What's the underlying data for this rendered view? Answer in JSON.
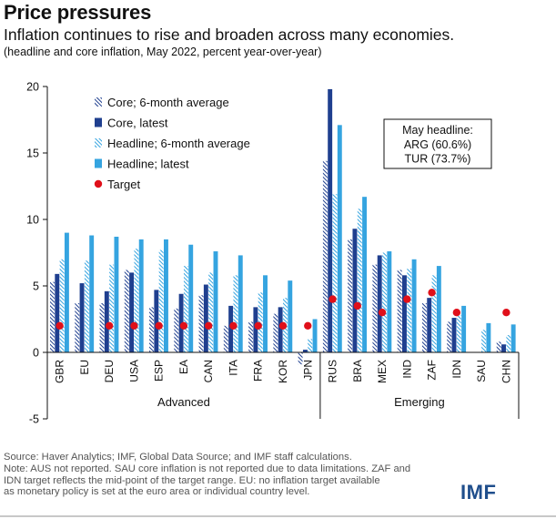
{
  "header": {
    "title": "Price pressures",
    "subtitle": "Inflation continues to rise and broaden across many economies.",
    "note": "(headline and core inflation, May 2022, percent year-over-year)"
  },
  "chart_data": {
    "type": "bar",
    "categories": [
      "GBR",
      "EU",
      "DEU",
      "USA",
      "ESP",
      "EA",
      "CAN",
      "ITA",
      "FRA",
      "KOR",
      "JPN",
      "RUS",
      "BRA",
      "MEX",
      "IND",
      "ZAF",
      "IDN",
      "SAU",
      "CHN"
    ],
    "series": [
      {
        "name": "Core; 6-month average",
        "pattern": "hatched",
        "color": "#1f3f8f",
        "values": [
          5.3,
          3.7,
          3.7,
          6.2,
          3.4,
          3.3,
          4.3,
          2.0,
          2.3,
          2.9,
          -0.9,
          14.4,
          8.5,
          6.6,
          6.2,
          3.7,
          2.3,
          null,
          0.8
        ]
      },
      {
        "name": "Core, latest",
        "pattern": "solid",
        "color": "#1f3f8f",
        "values": [
          5.9,
          5.2,
          4.6,
          6.0,
          4.7,
          4.4,
          5.1,
          3.5,
          3.4,
          3.4,
          0.2,
          19.8,
          9.3,
          7.3,
          5.8,
          4.1,
          2.6,
          null,
          0.6
        ]
      },
      {
        "name": "Headline; 6-month average",
        "pattern": "hatched",
        "color": "#35a4e0",
        "values": [
          7.0,
          6.9,
          6.6,
          7.8,
          7.7,
          6.5,
          6.0,
          5.8,
          4.5,
          4.1,
          1.0,
          11.9,
          10.8,
          7.5,
          6.3,
          5.8,
          2.8,
          1.7,
          1.3
        ]
      },
      {
        "name": "Headline; latest",
        "pattern": "solid",
        "color": "#35a4e0",
        "values": [
          9.0,
          8.8,
          8.7,
          8.5,
          8.5,
          8.1,
          7.6,
          7.3,
          5.8,
          5.4,
          2.5,
          17.1,
          11.7,
          7.6,
          7.0,
          6.5,
          3.5,
          2.2,
          2.1
        ]
      },
      {
        "name": "Target",
        "pattern": "marker",
        "color": "#e0101a",
        "values": [
          2,
          null,
          2,
          2,
          2,
          2,
          2,
          2,
          2,
          2,
          2,
          4,
          3.5,
          3,
          4,
          4.5,
          3,
          null,
          3
        ]
      }
    ],
    "groups": [
      {
        "label": "Advanced",
        "from": 0,
        "to": 10
      },
      {
        "label": "Emerging",
        "from": 11,
        "to": 18
      }
    ],
    "yticks": [
      20,
      15,
      10,
      5,
      0,
      -5
    ],
    "ylim": [
      -5,
      20
    ],
    "grid": false,
    "legend_position": "top-left",
    "annotation": {
      "heading": "May headline:",
      "lines": [
        "ARG (60.6%)",
        "TUR (73.7%)"
      ]
    }
  },
  "footer": {
    "source_lines": [
      "Source: Haver Analytics; IMF, Global Data Source; and IMF staff calculations.",
      "Note: AUS not reported. SAU core inflation is not reported due to data limitations. ZAF and",
      "IDN target reflects the mid-point of the target range. EU: no inflation target available",
      "as monetary policy is set at the euro area or individual country level."
    ],
    "logo": "IMF"
  }
}
